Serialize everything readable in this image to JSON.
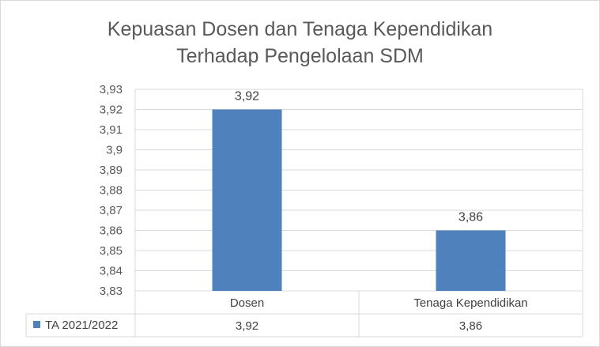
{
  "chart_data": {
    "type": "bar",
    "title": [
      "Kepuasan Dosen dan Tenaga Kependidikan",
      "Terhadap Pengelolaan SDM"
    ],
    "categories": [
      "Dosen",
      "Tenaga Kependidikan"
    ],
    "series": [
      {
        "name": "TA 2021/2022",
        "values": [
          3.92,
          3.86
        ],
        "color": "#4f81bd"
      }
    ],
    "data_labels": [
      "3,92",
      "3,86"
    ],
    "y_ticks": [
      "3,83",
      "3,84",
      "3,85",
      "3,86",
      "3,87",
      "3,88",
      "3,89",
      "3,9",
      "3,91",
      "3,92",
      "3,93"
    ],
    "ylim": [
      3.83,
      3.93
    ],
    "ystep": 0.01,
    "grid": true,
    "legend": "data-table"
  }
}
